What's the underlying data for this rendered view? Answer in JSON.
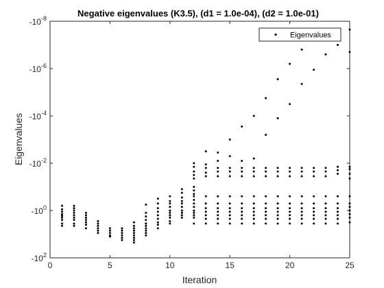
{
  "chart_data": {
    "type": "scatter",
    "title": "Negative eigenvalues (K3.5), (d1 = 1.0e-04), (d2 = 1.0e-01)",
    "xlabel": "Iteration",
    "ylabel": "Eigenvalues",
    "xlim": [
      0,
      25
    ],
    "xticks": [
      0,
      5,
      10,
      15,
      20,
      25
    ],
    "xtick_labels": [
      "0",
      "5",
      "10",
      "15",
      "20",
      "25"
    ],
    "yscale": "symlog-negative",
    "ylim_exponent": [
      -8,
      2
    ],
    "yticks_exponent": [
      -8,
      -6,
      -4,
      -2,
      0,
      2
    ],
    "ytick_labels": [
      {
        "base": "-10",
        "exp": "-8"
      },
      {
        "base": "-10",
        "exp": "-6"
      },
      {
        "base": "-10",
        "exp": "-4"
      },
      {
        "base": "-10",
        "exp": "-2"
      },
      {
        "base": "-10",
        "exp": "0"
      },
      {
        "base": "-10",
        "exp": "2"
      }
    ],
    "legend": {
      "entries": [
        "Eigenvalues"
      ],
      "position": "top-right"
    },
    "grid": false,
    "marker_color": "#000000",
    "series": [
      {
        "name": "Eigenvalues",
        "points_log_magnitude": [
          [
            1,
            -0.2
          ],
          [
            1,
            -0.05
          ],
          [
            1,
            0.05
          ],
          [
            1,
            0.15
          ],
          [
            1,
            0.22
          ],
          [
            1,
            0.3
          ],
          [
            1,
            0.4
          ],
          [
            1,
            0.55
          ],
          [
            1,
            0.65
          ],
          [
            2,
            -0.2
          ],
          [
            2,
            -0.1
          ],
          [
            2,
            0.0
          ],
          [
            2,
            0.1
          ],
          [
            2,
            0.2
          ],
          [
            2,
            0.3
          ],
          [
            2,
            0.4
          ],
          [
            2,
            0.55
          ],
          [
            2,
            0.65
          ],
          [
            3,
            0.1
          ],
          [
            3,
            0.2
          ],
          [
            3,
            0.3
          ],
          [
            3,
            0.4
          ],
          [
            3,
            0.5
          ],
          [
            3,
            0.6
          ],
          [
            3,
            0.75
          ],
          [
            4,
            0.45
          ],
          [
            4,
            0.55
          ],
          [
            4,
            0.65
          ],
          [
            4,
            0.75
          ],
          [
            4,
            0.85
          ],
          [
            4,
            0.95
          ],
          [
            5,
            0.75
          ],
          [
            5,
            0.85
          ],
          [
            5,
            0.95
          ],
          [
            5,
            1.05
          ],
          [
            5,
            1.1
          ],
          [
            6,
            0.75
          ],
          [
            6,
            0.85
          ],
          [
            6,
            0.95
          ],
          [
            6,
            1.05
          ],
          [
            6,
            1.15
          ],
          [
            6,
            1.25
          ],
          [
            7,
            0.5
          ],
          [
            7,
            0.65
          ],
          [
            7,
            0.75
          ],
          [
            7,
            0.85
          ],
          [
            7,
            0.95
          ],
          [
            7,
            1.05
          ],
          [
            7,
            1.15
          ],
          [
            7,
            1.25
          ],
          [
            7,
            1.35
          ],
          [
            8,
            -0.25
          ],
          [
            8,
            0.1
          ],
          [
            8,
            0.25
          ],
          [
            8,
            0.4
          ],
          [
            8,
            0.55
          ],
          [
            8,
            0.65
          ],
          [
            8,
            0.75
          ],
          [
            8,
            0.85
          ],
          [
            8,
            0.95
          ],
          [
            8,
            1.05
          ],
          [
            9,
            -0.5
          ],
          [
            9,
            -0.3
          ],
          [
            9,
            -0.1
          ],
          [
            9,
            0.05
          ],
          [
            9,
            0.2
          ],
          [
            9,
            0.35
          ],
          [
            9,
            0.5
          ],
          [
            9,
            0.6
          ],
          [
            9,
            0.75
          ],
          [
            10,
            -0.6
          ],
          [
            10,
            -0.4
          ],
          [
            10,
            -0.3
          ],
          [
            10,
            -0.15
          ],
          [
            10,
            0.0
          ],
          [
            10,
            0.1
          ],
          [
            10,
            0.2
          ],
          [
            10,
            0.3
          ],
          [
            10,
            0.45
          ],
          [
            10,
            0.55
          ],
          [
            11,
            -0.9
          ],
          [
            11,
            -0.75
          ],
          [
            11,
            -0.55
          ],
          [
            11,
            -0.4
          ],
          [
            11,
            -0.3
          ],
          [
            11,
            -0.15
          ],
          [
            11,
            0.0
          ],
          [
            11,
            0.1
          ],
          [
            11,
            0.2
          ],
          [
            11,
            0.3
          ],
          [
            12,
            -2.0
          ],
          [
            12,
            -1.85
          ],
          [
            12,
            -1.65
          ],
          [
            12,
            -1.5
          ],
          [
            12,
            -1.35
          ],
          [
            12,
            -1.0
          ],
          [
            12,
            -0.85
          ],
          [
            12,
            -0.7
          ],
          [
            12,
            -0.6
          ],
          [
            12,
            -0.45
          ],
          [
            12,
            -0.3
          ],
          [
            12,
            -0.15
          ],
          [
            12,
            0.0
          ],
          [
            12,
            0.1
          ],
          [
            12,
            0.2
          ],
          [
            12,
            0.3
          ],
          [
            12,
            0.55
          ],
          [
            13,
            -2.5
          ],
          [
            13,
            -1.95
          ],
          [
            13,
            -1.8
          ],
          [
            13,
            -1.6
          ],
          [
            13,
            -1.45
          ],
          [
            13,
            -0.6
          ],
          [
            13,
            -0.3
          ],
          [
            13,
            -0.1
          ],
          [
            13,
            0.05
          ],
          [
            13,
            0.2
          ],
          [
            13,
            0.35
          ],
          [
            13,
            0.55
          ],
          [
            14,
            -2.45
          ],
          [
            14,
            -2.1
          ],
          [
            14,
            -1.8
          ],
          [
            14,
            -1.65
          ],
          [
            14,
            -1.45
          ],
          [
            14,
            -0.6
          ],
          [
            14,
            -0.3
          ],
          [
            14,
            -0.1
          ],
          [
            14,
            0.05
          ],
          [
            14,
            0.2
          ],
          [
            14,
            0.35
          ],
          [
            14,
            0.55
          ],
          [
            15,
            -3.0
          ],
          [
            15,
            -2.3
          ],
          [
            15,
            -1.8
          ],
          [
            15,
            -1.65
          ],
          [
            15,
            -1.45
          ],
          [
            15,
            -0.6
          ],
          [
            15,
            -0.3
          ],
          [
            15,
            -0.1
          ],
          [
            15,
            0.05
          ],
          [
            15,
            0.2
          ],
          [
            15,
            0.35
          ],
          [
            15,
            0.55
          ],
          [
            16,
            -3.55
          ],
          [
            16,
            -2.1
          ],
          [
            16,
            -1.8
          ],
          [
            16,
            -1.65
          ],
          [
            16,
            -1.45
          ],
          [
            16,
            -0.6
          ],
          [
            16,
            -0.3
          ],
          [
            16,
            -0.1
          ],
          [
            16,
            0.05
          ],
          [
            16,
            0.2
          ],
          [
            16,
            0.35
          ],
          [
            16,
            0.55
          ],
          [
            17,
            -4.0
          ],
          [
            17,
            -2.2
          ],
          [
            17,
            -1.8
          ],
          [
            17,
            -1.65
          ],
          [
            17,
            -1.45
          ],
          [
            17,
            -0.6
          ],
          [
            17,
            -0.3
          ],
          [
            17,
            -0.1
          ],
          [
            17,
            0.05
          ],
          [
            17,
            0.2
          ],
          [
            17,
            0.35
          ],
          [
            17,
            0.55
          ],
          [
            18,
            -4.75
          ],
          [
            18,
            -3.2
          ],
          [
            18,
            -1.8
          ],
          [
            18,
            -1.65
          ],
          [
            18,
            -1.45
          ],
          [
            18,
            -0.6
          ],
          [
            18,
            -0.3
          ],
          [
            18,
            -0.1
          ],
          [
            18,
            0.05
          ],
          [
            18,
            0.2
          ],
          [
            18,
            0.35
          ],
          [
            18,
            0.55
          ],
          [
            19,
            -5.55
          ],
          [
            19,
            -3.9
          ],
          [
            19,
            -1.8
          ],
          [
            19,
            -1.65
          ],
          [
            19,
            -1.45
          ],
          [
            19,
            -0.6
          ],
          [
            19,
            -0.3
          ],
          [
            19,
            -0.1
          ],
          [
            19,
            0.05
          ],
          [
            19,
            0.2
          ],
          [
            19,
            0.35
          ],
          [
            19,
            0.55
          ],
          [
            20,
            -6.2
          ],
          [
            20,
            -4.5
          ],
          [
            20,
            -1.8
          ],
          [
            20,
            -1.65
          ],
          [
            20,
            -1.45
          ],
          [
            20,
            -0.6
          ],
          [
            20,
            -0.3
          ],
          [
            20,
            -0.1
          ],
          [
            20,
            0.05
          ],
          [
            20,
            0.2
          ],
          [
            20,
            0.35
          ],
          [
            20,
            0.55
          ],
          [
            21,
            -6.8
          ],
          [
            21,
            -5.35
          ],
          [
            21,
            -1.8
          ],
          [
            21,
            -1.65
          ],
          [
            21,
            -1.45
          ],
          [
            21,
            -0.6
          ],
          [
            21,
            -0.3
          ],
          [
            21,
            -0.1
          ],
          [
            21,
            0.05
          ],
          [
            21,
            0.2
          ],
          [
            21,
            0.35
          ],
          [
            21,
            0.55
          ],
          [
            22,
            -7.35
          ],
          [
            22,
            -5.95
          ],
          [
            22,
            -1.8
          ],
          [
            22,
            -1.65
          ],
          [
            22,
            -1.45
          ],
          [
            22,
            -0.6
          ],
          [
            22,
            -0.3
          ],
          [
            22,
            -0.1
          ],
          [
            22,
            0.05
          ],
          [
            22,
            0.2
          ],
          [
            22,
            0.35
          ],
          [
            22,
            0.55
          ],
          [
            23,
            -7.55
          ],
          [
            23,
            -6.6
          ],
          [
            23,
            -1.8
          ],
          [
            23,
            -1.65
          ],
          [
            23,
            -1.45
          ],
          [
            23,
            -0.6
          ],
          [
            23,
            -0.3
          ],
          [
            23,
            -0.1
          ],
          [
            23,
            0.05
          ],
          [
            23,
            0.2
          ],
          [
            23,
            0.35
          ],
          [
            23,
            0.55
          ],
          [
            24,
            -7.65
          ],
          [
            24,
            -7.0
          ],
          [
            24,
            -1.85
          ],
          [
            24,
            -1.7
          ],
          [
            24,
            -1.55
          ],
          [
            24,
            -0.6
          ],
          [
            24,
            -0.3
          ],
          [
            24,
            -0.1
          ],
          [
            24,
            0.05
          ],
          [
            24,
            0.2
          ],
          [
            24,
            0.35
          ],
          [
            24,
            0.55
          ],
          [
            25,
            -7.65
          ],
          [
            25,
            -6.7
          ],
          [
            25,
            -1.85
          ],
          [
            25,
            -1.75
          ],
          [
            25,
            -1.55
          ],
          [
            25,
            -1.35
          ],
          [
            25,
            -0.6
          ],
          [
            25,
            -0.3
          ],
          [
            25,
            -0.15
          ],
          [
            25,
            0.0
          ],
          [
            25,
            0.15
          ],
          [
            25,
            0.3
          ],
          [
            25,
            0.5
          ]
        ]
      }
    ]
  }
}
